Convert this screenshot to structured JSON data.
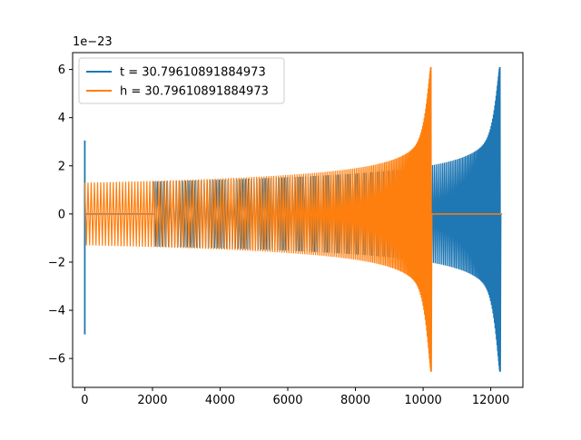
{
  "chart_data": {
    "type": "line",
    "title": "",
    "xlabel": "",
    "ylabel": "",
    "y_offset_label": "1e−23",
    "xlim": [
      -360,
      12950
    ],
    "ylim": [
      -7.2,
      6.7
    ],
    "xticks": [
      0,
      2000,
      4000,
      6000,
      8000,
      10000,
      12000
    ],
    "xtick_labels": [
      "0",
      "2000",
      "4000",
      "6000",
      "8000",
      "10000",
      "12000"
    ],
    "yticks": [
      -6,
      -4,
      -2,
      0,
      2,
      4,
      6
    ],
    "ytick_labels": [
      "−6",
      "−4",
      "−2",
      "0",
      "2",
      "4",
      "6"
    ],
    "grid": false,
    "legend_position": "upper-left",
    "series": [
      {
        "name": "t = 30.79610891884973",
        "color": "#1f77b4",
        "segments": [
          {
            "kind": "spike",
            "x": 0,
            "ymin": -5.0,
            "ymax": 3.05
          },
          {
            "kind": "flat",
            "x": [
              0,
              2050
            ],
            "y": 0
          },
          {
            "kind": "chirp",
            "x": [
              2050,
              12300
            ],
            "amp_start": 1.35,
            "amp_merge": 1.85,
            "amp_peak_pos": 6.1,
            "amp_peak_neg": -6.55,
            "x_peak": 12280
          },
          {
            "kind": "flat",
            "x": [
              12300,
              12330
            ],
            "y": 0
          }
        ]
      },
      {
        "name": "h = 30.79610891884973",
        "color": "#ff7f0e",
        "segments": [
          {
            "kind": "chirp",
            "x": [
              0,
              10260
            ],
            "amp_start": 1.3,
            "amp_merge": 1.8,
            "amp_peak_pos": 6.1,
            "amp_peak_neg": -6.55,
            "x_peak": 10240
          },
          {
            "kind": "flat",
            "x": [
              10260,
              12330
            ],
            "y": 0
          }
        ]
      }
    ]
  }
}
